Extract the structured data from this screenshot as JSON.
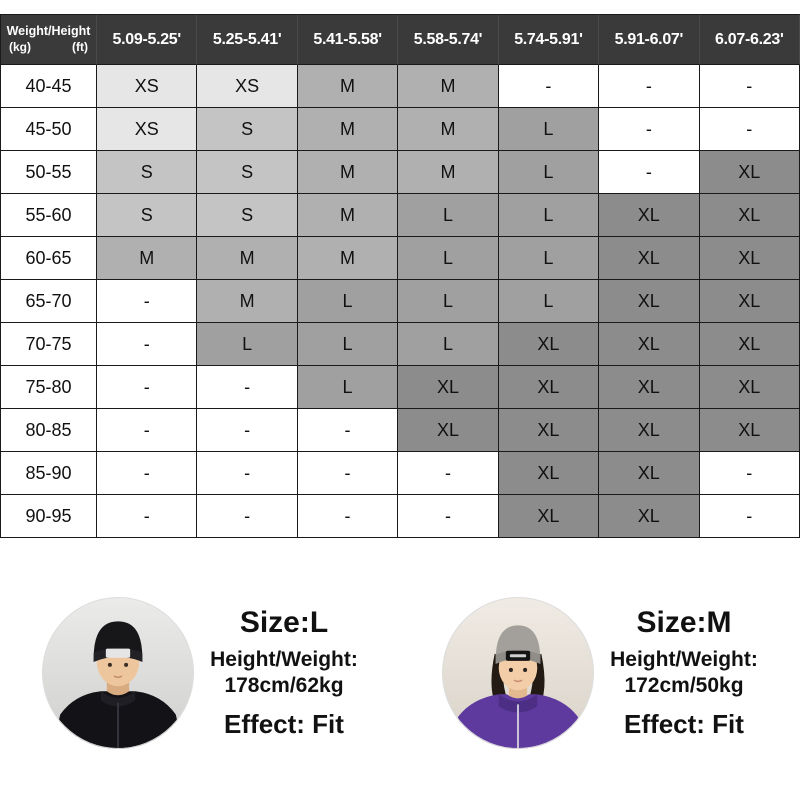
{
  "chart_data": {
    "type": "table",
    "corner": {
      "title": "Weight/Height",
      "unit_left": "(kg)",
      "unit_right": "(ft)"
    },
    "columns": [
      "5.09-5.25'",
      "5.25-5.41'",
      "5.41-5.58'",
      "5.58-5.74'",
      "5.74-5.91'",
      "5.91-6.07'",
      "6.07-6.23'"
    ],
    "rows": [
      {
        "weight": "40-45",
        "cells": [
          "XS",
          "XS",
          "M",
          "M",
          "-",
          "-",
          "-"
        ]
      },
      {
        "weight": "45-50",
        "cells": [
          "XS",
          "S",
          "M",
          "M",
          "L",
          "-",
          "-"
        ]
      },
      {
        "weight": "50-55",
        "cells": [
          "S",
          "S",
          "M",
          "M",
          "L",
          "-",
          "XL"
        ]
      },
      {
        "weight": "55-60",
        "cells": [
          "S",
          "S",
          "M",
          "L",
          "L",
          "XL",
          "XL"
        ]
      },
      {
        "weight": "60-65",
        "cells": [
          "M",
          "M",
          "M",
          "L",
          "L",
          "XL",
          "XL"
        ]
      },
      {
        "weight": "65-70",
        "cells": [
          "-",
          "M",
          "L",
          "L",
          "L",
          "XL",
          "XL"
        ]
      },
      {
        "weight": "70-75",
        "cells": [
          "-",
          "L",
          "L",
          "L",
          "XL",
          "XL",
          "XL"
        ]
      },
      {
        "weight": "75-80",
        "cells": [
          "-",
          "-",
          "L",
          "XL",
          "XL",
          "XL",
          "XL"
        ]
      },
      {
        "weight": "80-85",
        "cells": [
          "-",
          "-",
          "-",
          "XL",
          "XL",
          "XL",
          "XL"
        ]
      },
      {
        "weight": "85-90",
        "cells": [
          "-",
          "-",
          "-",
          "-",
          "XL",
          "XL",
          "-"
        ]
      },
      {
        "weight": "90-95",
        "cells": [
          "-",
          "-",
          "-",
          "-",
          "XL",
          "XL",
          "-"
        ]
      }
    ],
    "header_bg": "#3a3a3a",
    "header_text_color": "#ffffff",
    "grid_color": "#1a1a1a"
  },
  "size_colors": {
    "XS": "#e6e6e6",
    "S": "#c4c4c4",
    "M": "#b0b0b0",
    "L": "#a0a0a0",
    "XL": "#8c8c8c",
    "-": "#ffffff"
  },
  "models": [
    {
      "size": "Size:L",
      "height_weight_label": "Height/Weight:",
      "height_weight_value": "178cm/62kg",
      "effect": "Effect: Fit"
    },
    {
      "size": "Size:M",
      "height_weight_label": "Height/Weight:",
      "height_weight_value": "172cm/50kg",
      "effect": "Effect: Fit"
    }
  ]
}
